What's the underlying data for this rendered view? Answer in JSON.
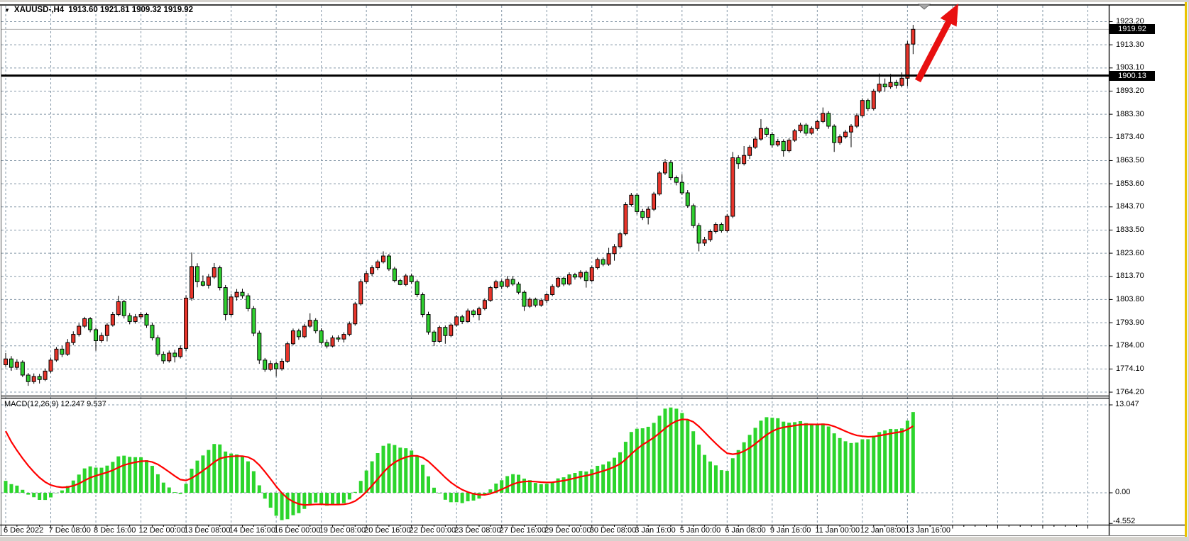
{
  "header": {
    "dropdown_icon": "▼",
    "symbol": "XAUUSD-,H4",
    "ohlc": "1913.60 1921.81 1909.32 1919.92"
  },
  "price_axis": {
    "ticks": [
      "1923.20",
      "1913.30",
      "1903.10",
      "1893.20",
      "1883.30",
      "1873.40",
      "1863.50",
      "1853.60",
      "1843.70",
      "1833.50",
      "1823.60",
      "1813.70",
      "1803.80",
      "1793.90",
      "1784.00",
      "1774.10",
      "1764.20"
    ],
    "current_price_badge": "1919.92",
    "level_badge": "1900.13"
  },
  "time_axis": {
    "labels": [
      "6 Dec 2022",
      "7 Dec 08:00",
      "8 Dec 16:00",
      "12 Dec 00:00",
      "13 Dec 08:00",
      "14 Dec 16:00",
      "16 Dec 00:00",
      "19 Dec 08:00",
      "20 Dec 16:00",
      "22 Dec 00:00",
      "23 Dec 08:00",
      "27 Dec 16:00",
      "29 Dec 00:00",
      "30 Dec 08:00",
      "3 Jan 16:00",
      "5 Jan 00:00",
      "6 Jan 08:00",
      "9 Jan 16:00",
      "11 Jan 00:00",
      "12 Jan 08:00",
      "13 Jan 16:00"
    ]
  },
  "indicator": {
    "label": "MACD(12,26,9) 12.247 9.537",
    "axis_max": "13.047",
    "axis_zero": "0.00",
    "axis_min": "-4.552"
  },
  "chart_data": {
    "type": "candlestick",
    "title": "XAUUSD-,H4",
    "symbol": "XAUUSD-",
    "timeframe": "H4",
    "last_bar": {
      "open": 1913.6,
      "high": 1921.81,
      "low": 1909.32,
      "close": 1919.92
    },
    "bid_price": 1919.92,
    "horizontal_level": 1900.13,
    "y_ticks": [
      1923.2,
      1913.3,
      1903.1,
      1893.2,
      1883.3,
      1873.4,
      1863.5,
      1853.6,
      1843.7,
      1833.5,
      1823.6,
      1813.7,
      1803.8,
      1793.9,
      1784.0,
      1774.1,
      1764.2
    ],
    "x_labels": [
      "6 Dec 2022",
      "7 Dec 08:00",
      "8 Dec 16:00",
      "12 Dec 00:00",
      "13 Dec 08:00",
      "14 Dec 16:00",
      "16 Dec 00:00",
      "19 Dec 08:00",
      "20 Dec 16:00",
      "22 Dec 00:00",
      "23 Dec 08:00",
      "27 Dec 16:00",
      "29 Dec 00:00",
      "30 Dec 08:00",
      "3 Jan 16:00",
      "5 Jan 00:00",
      "6 Jan 08:00",
      "9 Jan 16:00",
      "11 Jan 00:00",
      "12 Jan 08:00",
      "13 Jan 16:00"
    ],
    "indicator": {
      "name": "MACD",
      "fast": 12,
      "slow": 26,
      "signal": 9,
      "macd_value": 12.247,
      "signal_value": 9.537,
      "axis": [
        13.047,
        0.0,
        -4.552
      ]
    },
    "annotations": [
      {
        "kind": "up-arrow",
        "color": "#e81010",
        "meaning": "bullish-breakout-above-1900"
      },
      {
        "kind": "triangle-marker",
        "color": "#a0a0a0"
      }
    ],
    "candles": [
      [
        1776.5,
        1781.5,
        1775.6,
        1779.0
      ],
      [
        1779.0,
        1780.2,
        1773.9,
        1775.4
      ],
      [
        1775.4,
        1778.9,
        1774.3,
        1777.6
      ],
      [
        1777.6,
        1778.4,
        1771.2,
        1772.1
      ],
      [
        1772.1,
        1773.0,
        1767.5,
        1769.3
      ],
      [
        1769.3,
        1772.8,
        1768.4,
        1771.5
      ],
      [
        1771.5,
        1772.6,
        1768.5,
        1770.2
      ],
      [
        1770.2,
        1774.9,
        1769.5,
        1773.8
      ],
      [
        1773.8,
        1779.6,
        1772.9,
        1778.5
      ],
      [
        1778.5,
        1784.1,
        1777.8,
        1783.2
      ],
      [
        1783.2,
        1784.6,
        1779.8,
        1781.0
      ],
      [
        1781.0,
        1787.5,
        1780.3,
        1786.0
      ],
      [
        1786.0,
        1790.8,
        1784.9,
        1789.5
      ],
      [
        1789.5,
        1794.2,
        1788.6,
        1793.0
      ],
      [
        1793.0,
        1797.0,
        1792.1,
        1796.2
      ],
      [
        1796.2,
        1796.9,
        1790.4,
        1791.5
      ],
      [
        1791.5,
        1792.4,
        1782.5,
        1786.8
      ],
      [
        1786.8,
        1790.3,
        1785.9,
        1789.0
      ],
      [
        1789.0,
        1794.4,
        1786.5,
        1793.5
      ],
      [
        1793.5,
        1799.1,
        1792.8,
        1798.0
      ],
      [
        1798.0,
        1806.0,
        1797.2,
        1803.5
      ],
      [
        1803.5,
        1804.3,
        1796.3,
        1797.5
      ],
      [
        1797.5,
        1798.6,
        1793.8,
        1795.0
      ],
      [
        1795.0,
        1798.2,
        1794.1,
        1797.0
      ],
      [
        1797.0,
        1799.0,
        1795.9,
        1798.0
      ],
      [
        1798.0,
        1798.8,
        1792.3,
        1793.4
      ],
      [
        1793.4,
        1794.5,
        1786.9,
        1788.0
      ],
      [
        1788.0,
        1789.2,
        1780.1,
        1781.0
      ],
      [
        1781.0,
        1782.2,
        1777.0,
        1778.2
      ],
      [
        1778.2,
        1782.6,
        1777.4,
        1781.5
      ],
      [
        1781.5,
        1782.9,
        1777.5,
        1780.0
      ],
      [
        1780.0,
        1784.8,
        1779.2,
        1783.5
      ],
      [
        1783.5,
        1806.2,
        1782.4,
        1805.0
      ],
      [
        1805.0,
        1824.5,
        1803.9,
        1818.5
      ],
      [
        1818.5,
        1819.9,
        1809.6,
        1812.0
      ],
      [
        1812.0,
        1814.7,
        1810.0,
        1810.5
      ],
      [
        1810.5,
        1815.3,
        1809.1,
        1814.0
      ],
      [
        1814.0,
        1820.0,
        1813.2,
        1818.0
      ],
      [
        1818.0,
        1818.9,
        1808.3,
        1809.5
      ],
      [
        1809.5,
        1810.6,
        1795.5,
        1798.0
      ],
      [
        1798.0,
        1806.8,
        1797.1,
        1805.5
      ],
      [
        1805.5,
        1808.9,
        1803.9,
        1807.5
      ],
      [
        1807.5,
        1809.0,
        1804.8,
        1806.0
      ],
      [
        1806.0,
        1807.1,
        1799.3,
        1800.5
      ],
      [
        1800.5,
        1801.6,
        1788.7,
        1790.0
      ],
      [
        1790.0,
        1791.1,
        1776.9,
        1778.5
      ],
      [
        1778.5,
        1779.4,
        1773.5,
        1774.5
      ],
      [
        1774.5,
        1778.3,
        1773.8,
        1777.0
      ],
      [
        1777.0,
        1777.9,
        1771.5,
        1774.8
      ],
      [
        1774.8,
        1779.2,
        1774.0,
        1778.0
      ],
      [
        1778.0,
        1786.4,
        1777.3,
        1785.5
      ],
      [
        1785.5,
        1792.0,
        1784.8,
        1791.0
      ],
      [
        1791.0,
        1791.9,
        1787.2,
        1788.5
      ],
      [
        1788.5,
        1794.0,
        1787.8,
        1793.0
      ],
      [
        1793.0,
        1798.5,
        1792.2,
        1795.5
      ],
      [
        1795.5,
        1796.4,
        1789.9,
        1791.0
      ],
      [
        1791.0,
        1792.1,
        1785.1,
        1786.0
      ],
      [
        1786.0,
        1787.3,
        1783.5,
        1784.5
      ],
      [
        1784.5,
        1789.0,
        1783.9,
        1788.0
      ],
      [
        1788.0,
        1789.1,
        1786.3,
        1787.5
      ],
      [
        1787.5,
        1790.4,
        1786.0,
        1789.5
      ],
      [
        1789.5,
        1795.0,
        1788.7,
        1794.0
      ],
      [
        1794.0,
        1803.4,
        1793.2,
        1802.5
      ],
      [
        1802.5,
        1813.1,
        1801.8,
        1812.0
      ],
      [
        1812.0,
        1816.6,
        1811.2,
        1815.5
      ],
      [
        1815.5,
        1819.0,
        1814.4,
        1818.0
      ],
      [
        1818.0,
        1821.4,
        1816.9,
        1820.5
      ],
      [
        1820.5,
        1825.0,
        1819.8,
        1823.0
      ],
      [
        1823.0,
        1823.9,
        1816.6,
        1817.5
      ],
      [
        1817.5,
        1818.4,
        1811.7,
        1812.5
      ],
      [
        1812.5,
        1813.3,
        1810.5,
        1810.8
      ],
      [
        1810.8,
        1815.4,
        1810.1,
        1814.5
      ],
      [
        1814.5,
        1815.5,
        1811.1,
        1812.0
      ],
      [
        1812.0,
        1812.9,
        1805.4,
        1806.5
      ],
      [
        1806.5,
        1807.4,
        1796.8,
        1798.0
      ],
      [
        1798.0,
        1799.2,
        1789.4,
        1790.5
      ],
      [
        1790.5,
        1791.3,
        1784.5,
        1786.5
      ],
      [
        1786.5,
        1793.2,
        1785.9,
        1792.5
      ],
      [
        1792.5,
        1793.3,
        1785.5,
        1789.0
      ],
      [
        1789.0,
        1794.2,
        1788.3,
        1793.5
      ],
      [
        1793.5,
        1797.8,
        1792.8,
        1797.0
      ],
      [
        1797.0,
        1797.9,
        1793.9,
        1795.0
      ],
      [
        1795.0,
        1800.5,
        1794.4,
        1799.5
      ],
      [
        1799.5,
        1800.2,
        1796.8,
        1798.0
      ],
      [
        1798.0,
        1801.3,
        1795.5,
        1800.5
      ],
      [
        1800.5,
        1804.9,
        1799.8,
        1804.0
      ],
      [
        1804.0,
        1810.3,
        1803.4,
        1809.5
      ],
      [
        1809.5,
        1812.8,
        1808.7,
        1812.0
      ],
      [
        1812.0,
        1812.9,
        1808.9,
        1810.0
      ],
      [
        1810.0,
        1814.5,
        1809.3,
        1813.0
      ],
      [
        1813.0,
        1814.5,
        1810.2,
        1811.0
      ],
      [
        1811.0,
        1811.9,
        1806.6,
        1807.5
      ],
      [
        1807.5,
        1808.3,
        1799.5,
        1801.5
      ],
      [
        1801.5,
        1805.3,
        1800.8,
        1804.5
      ],
      [
        1804.5,
        1805.2,
        1801.1,
        1802.0
      ],
      [
        1802.0,
        1804.9,
        1801.3,
        1804.0
      ],
      [
        1804.0,
        1807.2,
        1802.9,
        1806.5
      ],
      [
        1806.5,
        1810.9,
        1805.8,
        1810.0
      ],
      [
        1810.0,
        1814.2,
        1809.4,
        1813.5
      ],
      [
        1813.5,
        1814.1,
        1810.1,
        1811.0
      ],
      [
        1811.0,
        1816.0,
        1810.4,
        1815.0
      ],
      [
        1815.0,
        1815.8,
        1812.9,
        1814.0
      ],
      [
        1814.0,
        1816.9,
        1813.1,
        1816.0
      ],
      [
        1816.0,
        1816.8,
        1809.5,
        1812.5
      ],
      [
        1812.5,
        1818.9,
        1811.9,
        1818.0
      ],
      [
        1818.0,
        1822.3,
        1817.2,
        1821.5
      ],
      [
        1821.5,
        1822.4,
        1818.6,
        1819.5
      ],
      [
        1819.5,
        1826.5,
        1818.8,
        1824.0
      ],
      [
        1824.0,
        1828.1,
        1821.0,
        1827.0
      ],
      [
        1827.0,
        1833.4,
        1826.2,
        1832.5
      ],
      [
        1832.5,
        1846.0,
        1831.7,
        1845.0
      ],
      [
        1845.0,
        1850.0,
        1844.1,
        1849.0
      ],
      [
        1849.0,
        1849.9,
        1840.8,
        1842.0
      ],
      [
        1842.0,
        1843.1,
        1838.4,
        1839.5
      ],
      [
        1839.5,
        1844.2,
        1836.5,
        1843.0
      ],
      [
        1843.0,
        1850.4,
        1842.2,
        1849.5
      ],
      [
        1849.5,
        1859.4,
        1848.8,
        1858.5
      ],
      [
        1858.5,
        1864.5,
        1857.6,
        1863.0
      ],
      [
        1863.0,
        1863.9,
        1855.4,
        1856.5
      ],
      [
        1856.5,
        1857.4,
        1853.2,
        1854.5
      ],
      [
        1854.5,
        1858.0,
        1849.1,
        1850.0
      ],
      [
        1850.0,
        1851.2,
        1843.6,
        1844.5
      ],
      [
        1844.5,
        1845.4,
        1834.9,
        1836.0
      ],
      [
        1836.0,
        1837.1,
        1825.0,
        1828.5
      ],
      [
        1828.5,
        1831.2,
        1827.3,
        1830.0
      ],
      [
        1830.0,
        1834.4,
        1829.1,
        1833.5
      ],
      [
        1833.5,
        1837.4,
        1832.6,
        1836.5
      ],
      [
        1836.5,
        1837.3,
        1833.0,
        1833.8
      ],
      [
        1833.8,
        1841.0,
        1833.1,
        1840.0
      ],
      [
        1840.0,
        1867.5,
        1839.2,
        1865.0
      ],
      [
        1865.0,
        1866.1,
        1860.3,
        1862.5
      ],
      [
        1862.5,
        1870.0,
        1861.7,
        1866.0
      ],
      [
        1866.0,
        1870.4,
        1864.5,
        1869.5
      ],
      [
        1869.5,
        1874.1,
        1868.8,
        1873.0
      ],
      [
        1873.0,
        1881.5,
        1872.3,
        1877.5
      ],
      [
        1877.5,
        1878.3,
        1873.9,
        1875.0
      ],
      [
        1875.0,
        1876.0,
        1869.4,
        1870.5
      ],
      [
        1870.5,
        1873.1,
        1869.8,
        1872.0
      ],
      [
        1872.0,
        1872.9,
        1865.5,
        1868.0
      ],
      [
        1868.0,
        1873.4,
        1867.2,
        1872.5
      ],
      [
        1872.5,
        1877.3,
        1871.8,
        1876.5
      ],
      [
        1876.5,
        1880.0,
        1875.7,
        1879.0
      ],
      [
        1879.0,
        1879.8,
        1874.4,
        1875.5
      ],
      [
        1875.5,
        1878.4,
        1874.8,
        1877.5
      ],
      [
        1877.5,
        1881.3,
        1876.6,
        1880.5
      ],
      [
        1880.5,
        1886.5,
        1879.8,
        1884.0
      ],
      [
        1884.0,
        1884.9,
        1877.4,
        1878.5
      ],
      [
        1878.5,
        1879.3,
        1867.5,
        1871.5
      ],
      [
        1871.5,
        1875.0,
        1870.6,
        1874.0
      ],
      [
        1874.0,
        1876.9,
        1873.2,
        1876.0
      ],
      [
        1876.0,
        1879.4,
        1869.5,
        1878.5
      ],
      [
        1878.5,
        1884.0,
        1877.7,
        1883.0
      ],
      [
        1883.0,
        1890.4,
        1882.2,
        1889.5
      ],
      [
        1889.5,
        1890.3,
        1884.9,
        1886.0
      ],
      [
        1886.0,
        1894.4,
        1885.2,
        1893.5
      ],
      [
        1893.5,
        1901.0,
        1892.7,
        1896.5
      ],
      [
        1896.5,
        1898.9,
        1893.2,
        1895.3
      ],
      [
        1895.3,
        1900.8,
        1894.5,
        1897.2
      ],
      [
        1897.2,
        1898.3,
        1894.6,
        1896.0
      ],
      [
        1896.0,
        1901.5,
        1895.1,
        1899.0
      ],
      [
        1899.0,
        1914.8,
        1895.6,
        1913.6
      ],
      [
        1913.6,
        1921.81,
        1909.32,
        1919.92
      ]
    ]
  },
  "colors": {
    "bull_body": "#e8352b",
    "bear_body": "#2fcf2f",
    "histogram": "#2cd52c",
    "signal_line": "#ff0000",
    "grid": "#8598a8",
    "level_line": "#000000",
    "bid_line": "#b0b0b0",
    "arrow": "#e81010",
    "badge_bg": "#000000",
    "badge_text": "#ffffff",
    "frame_accent": "#eac400"
  }
}
